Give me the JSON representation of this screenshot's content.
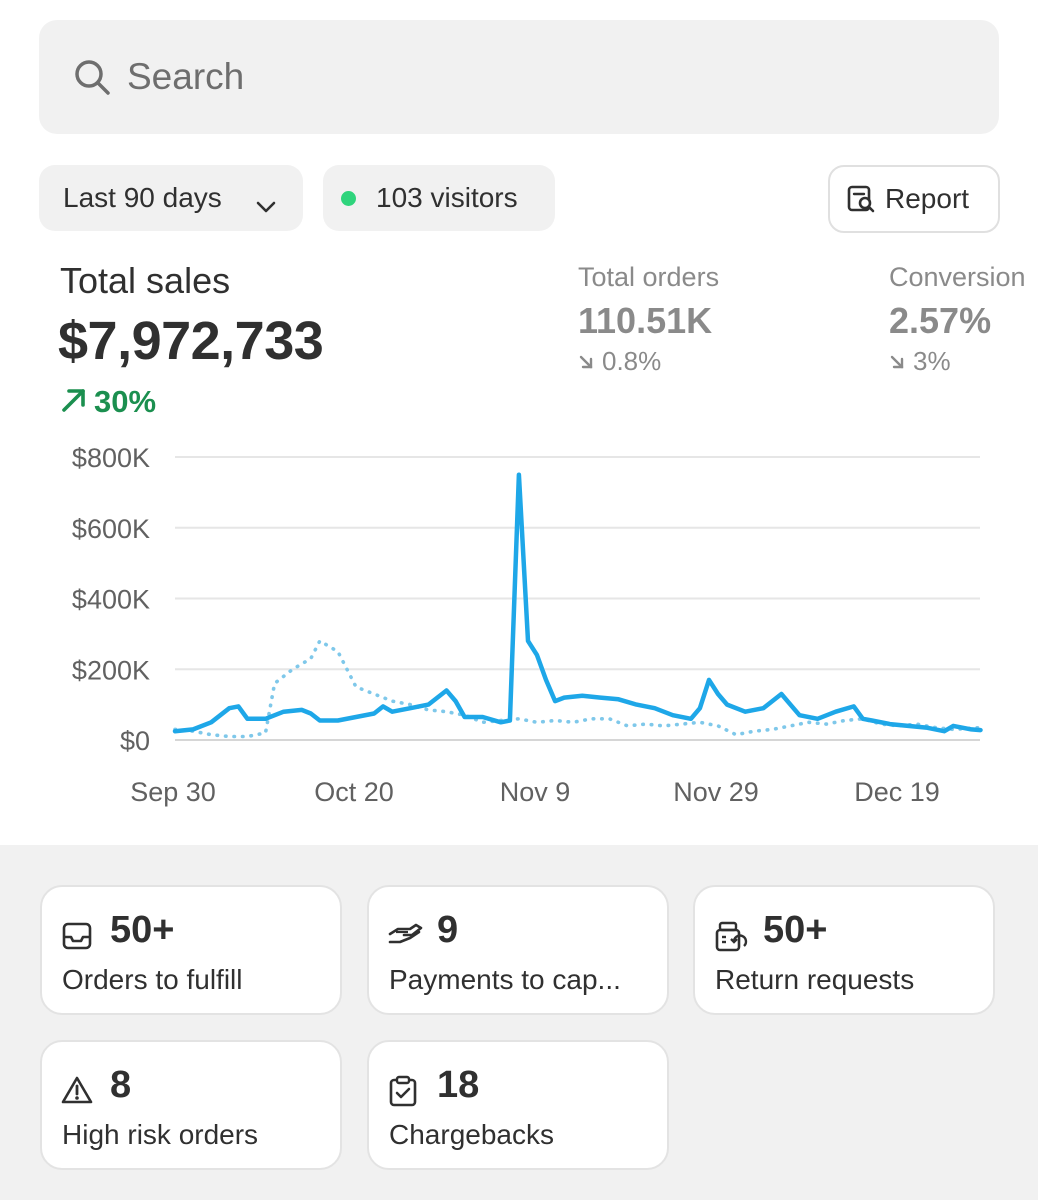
{
  "search": {
    "placeholder": "Search",
    "icon": "search-icon"
  },
  "filters": {
    "date_range": "Last 90 days",
    "visitors": "103 visitors",
    "visitors_dot_color": "#2fd47c",
    "report_label": "Report"
  },
  "metrics": {
    "total_sales": {
      "title": "Total sales",
      "value": "$7,972,733",
      "change": "30%",
      "trend": "up",
      "color": "#1b8f4f"
    },
    "total_orders": {
      "title": "Total orders",
      "value": "110.51K",
      "change": "0.8%",
      "trend": "down"
    },
    "conversion": {
      "title": "Conversion",
      "value": "2.57%",
      "change": "3%",
      "trend": "down"
    }
  },
  "chart_data": {
    "type": "line",
    "ylim": [
      0,
      800000
    ],
    "y_ticks": [
      "$0",
      "$200K",
      "$400K",
      "$600K",
      "$800K"
    ],
    "x_ticks": [
      "Sep 30",
      "Oct 20",
      "Nov 9",
      "Nov 29",
      "Dec 19"
    ],
    "grid": true,
    "series_colors": {
      "current": "#1ea7e8",
      "previous": "#7fc8ea"
    },
    "series": [
      {
        "style": "solid",
        "x": [
          "Sep 30",
          "Oct 2",
          "Oct 4",
          "Oct 6",
          "Oct 7",
          "Oct 8",
          "Oct 10",
          "Oct 12",
          "Oct 14",
          "Oct 15",
          "Oct 16",
          "Oct 18",
          "Oct 20",
          "Oct 22",
          "Oct 23",
          "Oct 24",
          "Oct 26",
          "Oct 28",
          "Oct 30",
          "Oct 31",
          "Nov 1",
          "Nov 3",
          "Nov 5",
          "Nov 6",
          "Nov 7",
          "Nov 8",
          "Nov 9",
          "Nov 10",
          "Nov 11",
          "Nov 12",
          "Nov 14",
          "Nov 16",
          "Nov 18",
          "Nov 20",
          "Nov 22",
          "Nov 24",
          "Nov 26",
          "Nov 27",
          "Nov 28",
          "Nov 29",
          "Nov 30",
          "Dec 2",
          "Dec 4",
          "Dec 6",
          "Dec 7",
          "Dec 8",
          "Dec 10",
          "Dec 12",
          "Dec 14",
          "Dec 15",
          "Dec 16",
          "Dec 18",
          "Dec 20",
          "Dec 22",
          "Dec 24",
          "Dec 25",
          "Dec 27",
          "Dec 28"
        ],
        "values": [
          25000,
          30000,
          50000,
          90000,
          95000,
          60000,
          60000,
          80000,
          85000,
          75000,
          55000,
          55000,
          65000,
          75000,
          95000,
          80000,
          90000,
          100000,
          140000,
          110000,
          65000,
          65000,
          50000,
          55000,
          750000,
          280000,
          240000,
          170000,
          110000,
          120000,
          125000,
          120000,
          115000,
          100000,
          90000,
          70000,
          60000,
          90000,
          170000,
          130000,
          100000,
          80000,
          90000,
          130000,
          100000,
          70000,
          60000,
          80000,
          95000,
          60000,
          55000,
          45000,
          40000,
          35000,
          25000,
          40000,
          30000,
          28000
        ]
      },
      {
        "style": "dotted",
        "x": [
          "Sep 30",
          "Oct 2",
          "Oct 4",
          "Oct 6",
          "Oct 8",
          "Oct 10",
          "Oct 11",
          "Oct 13",
          "Oct 15",
          "Oct 16",
          "Oct 18",
          "Oct 20",
          "Oct 22",
          "Oct 24",
          "Oct 26",
          "Oct 28",
          "Oct 30",
          "Nov 1",
          "Nov 3",
          "Nov 5",
          "Nov 7",
          "Nov 9",
          "Nov 11",
          "Nov 13",
          "Nov 15",
          "Nov 17",
          "Nov 19",
          "Nov 21",
          "Nov 23",
          "Nov 25",
          "Nov 27",
          "Nov 29",
          "Dec 1",
          "Dec 3",
          "Dec 5",
          "Dec 7",
          "Dec 9",
          "Dec 11",
          "Dec 13",
          "Dec 15",
          "Dec 17",
          "Dec 19",
          "Dec 21",
          "Dec 23",
          "Dec 25",
          "Dec 28"
        ],
        "values": [
          30000,
          25000,
          15000,
          10000,
          10000,
          20000,
          160000,
          200000,
          230000,
          280000,
          250000,
          150000,
          130000,
          110000,
          100000,
          85000,
          80000,
          70000,
          50000,
          55000,
          60000,
          50000,
          55000,
          50000,
          60000,
          60000,
          40000,
          45000,
          40000,
          45000,
          50000,
          40000,
          15000,
          25000,
          30000,
          40000,
          50000,
          45000,
          55000,
          60000,
          45000,
          40000,
          45000,
          35000,
          30000,
          35000
        ]
      }
    ]
  },
  "cards": [
    {
      "icon": "inbox-icon",
      "value": "50+",
      "label": "Orders to fulfill"
    },
    {
      "icon": "hand-payment-icon",
      "value": "9",
      "label": "Payments to cap..."
    },
    {
      "icon": "return-register-icon",
      "value": "50+",
      "label": "Return requests"
    },
    {
      "icon": "warning-icon",
      "value": "8",
      "label": "High risk orders"
    },
    {
      "icon": "clipboard-check-icon",
      "value": "18",
      "label": "Chargebacks"
    }
  ]
}
